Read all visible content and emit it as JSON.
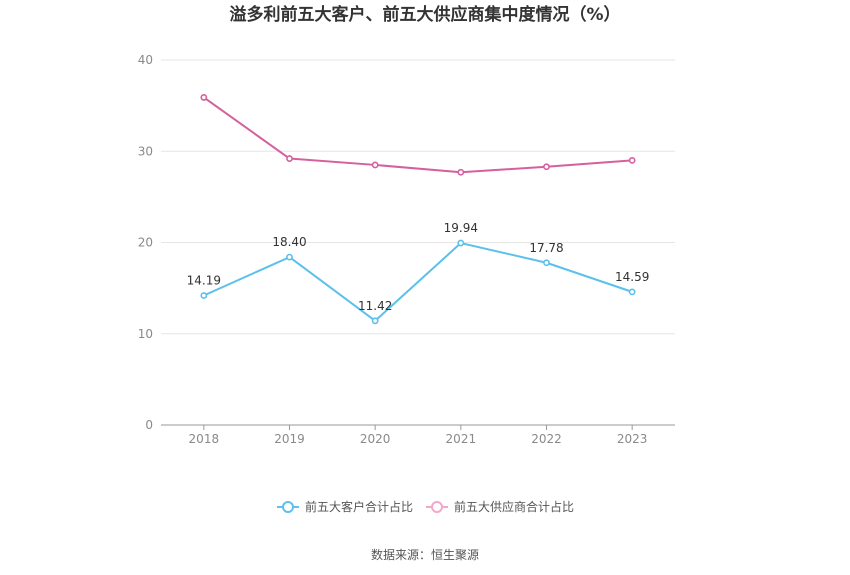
{
  "chart_data": {
    "type": "line",
    "title": "溢多利前五大客户、前五大供应商集中度情况（%）",
    "x": [
      "2018",
      "2019",
      "2020",
      "2021",
      "2022",
      "2023"
    ],
    "ylim": [
      0,
      40
    ],
    "yticks": [
      0,
      10,
      20,
      30,
      40
    ],
    "grid": true,
    "legend_position": "bottom",
    "series": [
      {
        "name": "前五大客户合计占比",
        "values": [
          14.19,
          18.4,
          11.42,
          19.94,
          17.78,
          14.59
        ],
        "labels": [
          "14.19",
          "18.40",
          "11.42",
          "19.94",
          "17.78",
          "14.59"
        ],
        "color": "#5bc0eb"
      },
      {
        "name": "前五大供应商合计占比",
        "values": [
          35.9,
          29.2,
          28.5,
          27.7,
          28.3,
          29.0
        ],
        "color": "#d4609e"
      }
    ]
  },
  "source": "数据来源：恒生聚源",
  "colors": {
    "grid": "#e6e6e6",
    "axis": "#999999",
    "legend_inactive_supplier": "#f0a8cf"
  }
}
